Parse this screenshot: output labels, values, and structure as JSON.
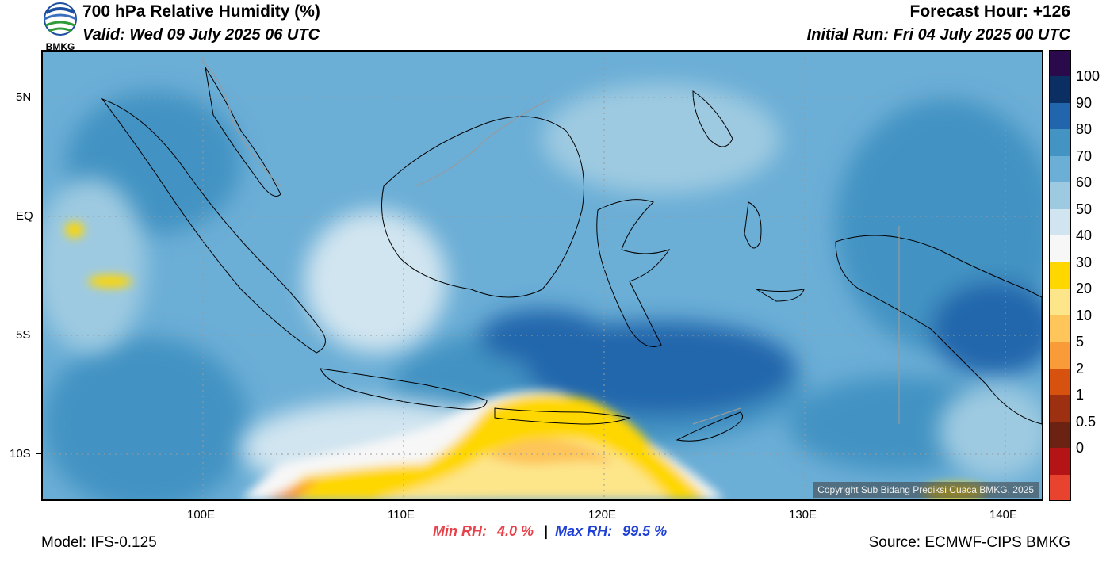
{
  "header": {
    "logo_text": "BMKG",
    "title": "700 hPa Relative Humidity (%)",
    "valid": "Valid: Wed 09 July 2025 06 UTC",
    "forecast_hour": "Forecast Hour: +126",
    "initial_run": "Initial Run: Fri 04 July 2025 00 UTC"
  },
  "map": {
    "lat_labels": [
      "5N",
      "EQ",
      "5S",
      "10S"
    ],
    "lon_labels": [
      "100E",
      "110E",
      "120E",
      "130E",
      "140E"
    ],
    "lon_range": [
      92,
      142
    ],
    "lat_range": [
      -12,
      7
    ],
    "copyright": "Copyright Sub Bidang Prediksi Cuaca BMKG, 2025"
  },
  "colorbar": {
    "labels": [
      "100",
      "90",
      "80",
      "70",
      "60",
      "50",
      "40",
      "30",
      "20",
      "10",
      "5",
      "2",
      "1",
      "0.5",
      "0"
    ],
    "colors": [
      "#2a0a4a",
      "#0c2f63",
      "#2166ac",
      "#4393c3",
      "#6baed6",
      "#9ecae1",
      "#d1e5f0",
      "#f7f7f7",
      "#ffd700",
      "#fde58a",
      "#fdc55a",
      "#f99b36",
      "#d8520f",
      "#9c3010",
      "#6b2212",
      "#b51416",
      "#e8432e"
    ]
  },
  "stats": {
    "min_label": "Min RH:",
    "min_value": "4.0 %",
    "separator": "|",
    "max_label": "Max RH:",
    "max_value": "99.5 %",
    "min_color": "#e8414a",
    "max_color": "#2040d8"
  },
  "footer": {
    "model": "Model: IFS-0.125",
    "source": "Source: ECMWF-CIPS BMKG"
  }
}
